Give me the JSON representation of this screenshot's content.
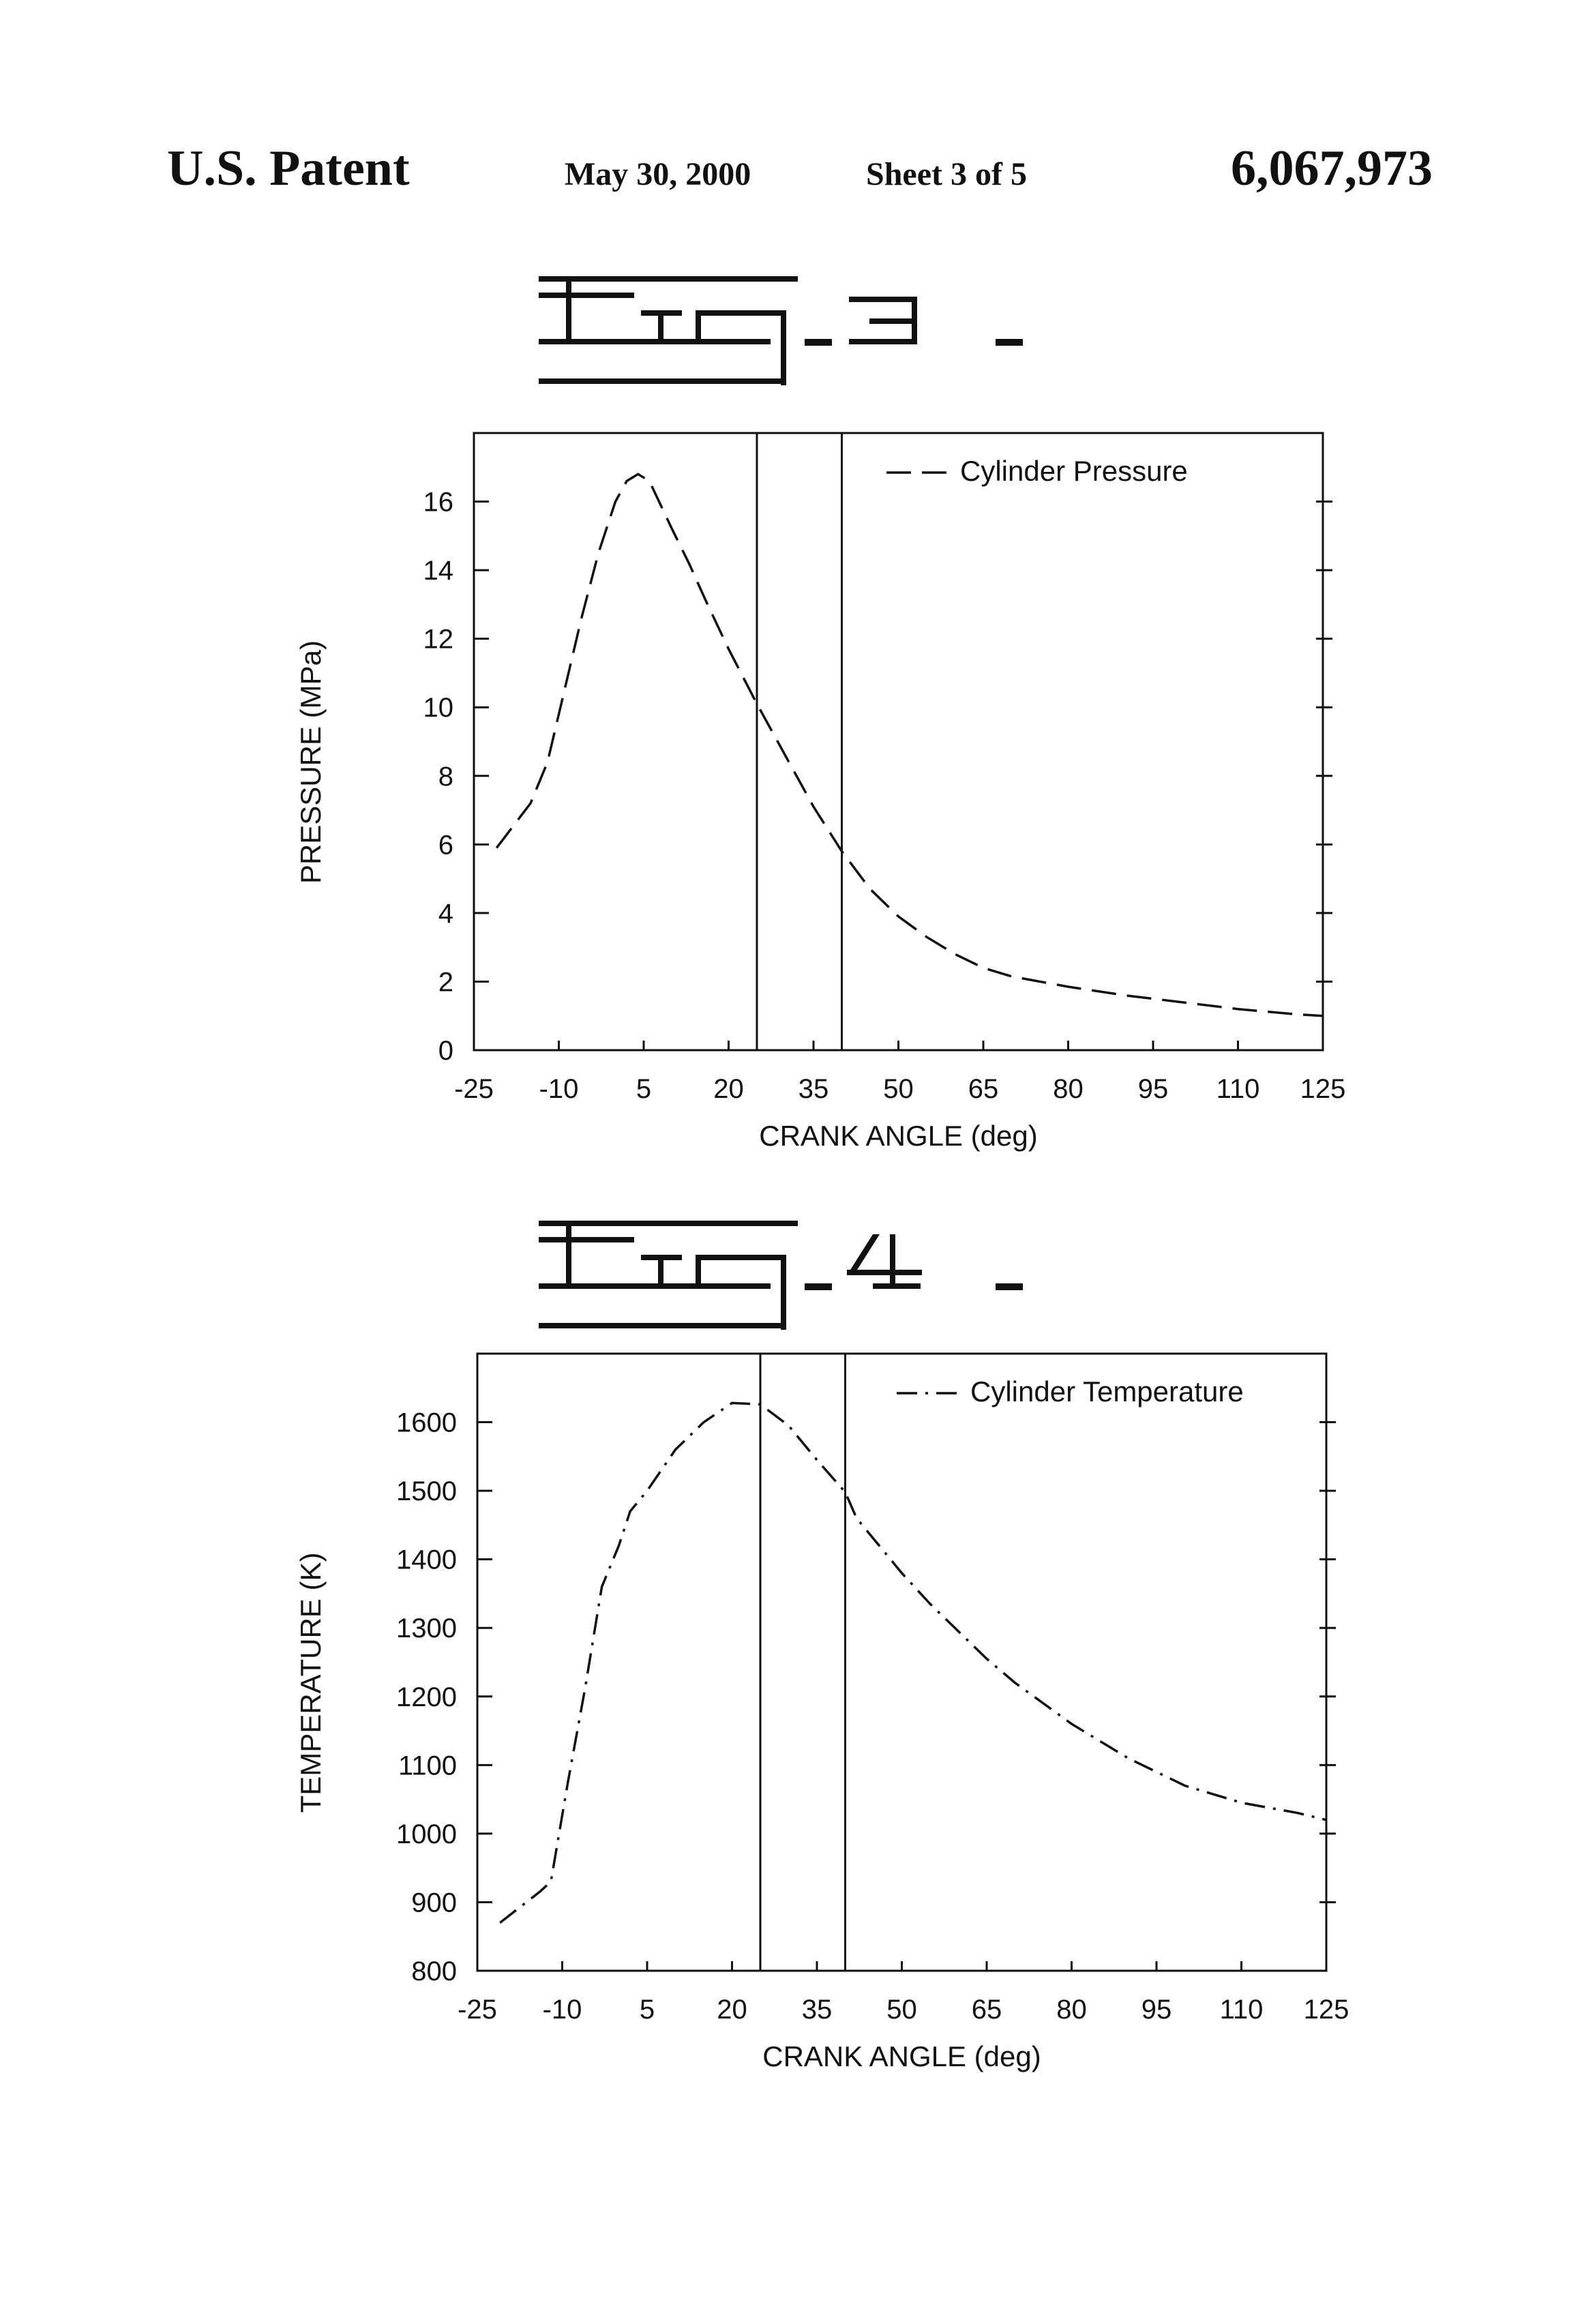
{
  "header": {
    "left": "U.S. Patent",
    "date": "May 30, 2000",
    "sheet": "Sheet 3 of 5",
    "patent_number": "6,067,973"
  },
  "figures": [
    {
      "label": "Fig. 3",
      "label_art": "stylized-figure-label"
    },
    {
      "label": "Fig. 4",
      "label_art": "stylized-figure-label"
    }
  ],
  "chart_data": [
    {
      "type": "line",
      "title": "",
      "xlabel": "CRANK ANGLE (deg)",
      "ylabel": "PRESSURE (MPa)",
      "xlim": [
        -25,
        125
      ],
      "ylim": [
        0,
        18
      ],
      "xticks": [
        -25,
        -10,
        5,
        20,
        35,
        50,
        65,
        80,
        95,
        110,
        125
      ],
      "yticks": [
        0,
        2,
        4,
        6,
        8,
        10,
        12,
        14,
        16
      ],
      "legend": "top-right",
      "grid": false,
      "reference_lines_x": [
        25,
        40
      ],
      "series": [
        {
          "name": "Cylinder Pressure",
          "line_style": "dashed",
          "x": [
            -21,
            -15,
            -12,
            -9,
            -6,
            -3,
            0,
            2,
            4,
            6,
            8,
            10,
            13,
            16,
            20,
            25,
            30,
            35,
            40,
            45,
            50,
            55,
            60,
            65,
            70,
            80,
            90,
            100,
            110,
            120,
            125
          ],
          "y": [
            5.9,
            7.2,
            8.4,
            10.5,
            12.6,
            14.5,
            16.0,
            16.6,
            16.8,
            16.6,
            15.9,
            15.2,
            14.2,
            13.1,
            11.7,
            10.1,
            8.6,
            7.1,
            5.8,
            4.7,
            3.9,
            3.3,
            2.8,
            2.4,
            2.15,
            1.85,
            1.6,
            1.4,
            1.2,
            1.05,
            1.0
          ]
        }
      ]
    },
    {
      "type": "line",
      "title": "",
      "xlabel": "CRANK ANGLE (deg)",
      "ylabel": "TEMPERATURE (K)",
      "xlim": [
        -25,
        125
      ],
      "ylim": [
        800,
        1700
      ],
      "xticks": [
        -25,
        -10,
        5,
        20,
        35,
        50,
        65,
        80,
        95,
        110,
        125
      ],
      "yticks": [
        800,
        900,
        1000,
        1100,
        1200,
        1300,
        1400,
        1500,
        1600
      ],
      "legend": "top-right",
      "grid": false,
      "reference_lines_x": [
        25,
        40
      ],
      "series": [
        {
          "name": "Cylinder Temperature",
          "line_style": "dash-dot",
          "x": [
            -21,
            -14,
            -12,
            -9,
            -6,
            -3,
            0,
            2,
            5,
            10,
            15,
            20,
            25,
            30,
            35,
            40,
            42,
            45,
            50,
            55,
            60,
            65,
            70,
            80,
            90,
            100,
            110,
            120,
            125
          ],
          "y": [
            870,
            915,
            930,
            1075,
            1210,
            1360,
            1420,
            1470,
            1500,
            1560,
            1600,
            1628,
            1626,
            1595,
            1545,
            1498,
            1460,
            1430,
            1380,
            1335,
            1295,
            1255,
            1220,
            1160,
            1110,
            1070,
            1045,
            1030,
            1020
          ]
        }
      ]
    }
  ]
}
